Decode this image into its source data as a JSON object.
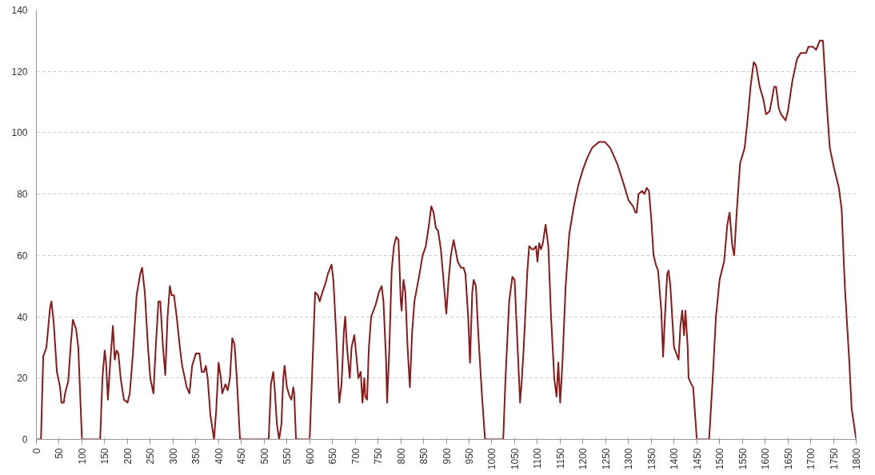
{
  "chart_data": {
    "type": "line",
    "xlim": [
      0,
      1800
    ],
    "ylim": [
      0,
      140
    ],
    "xticks": [
      0,
      50,
      100,
      150,
      200,
      250,
      300,
      350,
      400,
      450,
      500,
      550,
      600,
      650,
      700,
      750,
      800,
      850,
      900,
      950,
      1000,
      1050,
      1100,
      1150,
      1200,
      1250,
      1300,
      1350,
      1400,
      1450,
      1500,
      1550,
      1600,
      1650,
      1700,
      1750,
      1800
    ],
    "yticks": [
      0,
      20,
      40,
      60,
      80,
      100,
      120,
      140
    ],
    "grid": "y",
    "marker": "none",
    "line_style": "solid",
    "series": [
      {
        "color": "#8b1a1a",
        "x": [
          0,
          10,
          15,
          22,
          30,
          33,
          38,
          45,
          52,
          55,
          60,
          63,
          70,
          75,
          80,
          87,
          92,
          100,
          140,
          145,
          150,
          153,
          157,
          162,
          168,
          172,
          176,
          180,
          185,
          192,
          200,
          205,
          212,
          220,
          228,
          232,
          238,
          245,
          250,
          257,
          262,
          268,
          272,
          278,
          283,
          288,
          293,
          297,
          302,
          308,
          315,
          320,
          323,
          330,
          336,
          342,
          350,
          358,
          363,
          368,
          372,
          376,
          382,
          390,
          395,
          400,
          405,
          408,
          415,
          420,
          425,
          430,
          435,
          440,
          447,
          510,
          515,
          520,
          523,
          528,
          533,
          538,
          542,
          545,
          550,
          556,
          560,
          564,
          566,
          570,
          600,
          605,
          612,
          618,
          622,
          628,
          635,
          640,
          648,
          652,
          658,
          665,
          670,
          675,
          678,
          682,
          688,
          692,
          698,
          702,
          707,
          712,
          716,
          720,
          722,
          726,
          730,
          735,
          745,
          752,
          758,
          762,
          768,
          770,
          775,
          780,
          785,
          790,
          795,
          800,
          802,
          806,
          810,
          815,
          820,
          825,
          830,
          840,
          848,
          855,
          862,
          867,
          872,
          877,
          882,
          888,
          895,
          900,
          905,
          910,
          916,
          920,
          925,
          932,
          938,
          942,
          948,
          952,
          957,
          960,
          965,
          970,
          978,
          985,
          1025,
          1030,
          1038,
          1045,
          1050,
          1055,
          1062,
          1066,
          1070,
          1078,
          1082,
          1088,
          1092,
          1097,
          1100,
          1104,
          1108,
          1112,
          1118,
          1124,
          1130,
          1137,
          1142,
          1146,
          1150,
          1155,
          1162,
          1170,
          1180,
          1190,
          1200,
          1210,
          1220,
          1235,
          1248,
          1260,
          1275,
          1290,
          1300,
          1310,
          1315,
          1318,
          1322,
          1330,
          1335,
          1340,
          1345,
          1350,
          1355,
          1360,
          1365,
          1372,
          1376,
          1380,
          1385,
          1388,
          1392,
          1396,
          1400,
          1410,
          1414,
          1418,
          1422,
          1425,
          1430,
          1432,
          1438,
          1442,
          1450,
          1477,
          1485,
          1492,
          1500,
          1510,
          1517,
          1522,
          1528,
          1532,
          1538,
          1545,
          1555,
          1562,
          1568,
          1575,
          1580,
          1588,
          1596,
          1602,
          1610,
          1620,
          1624,
          1630,
          1635,
          1645,
          1650,
          1660,
          1670,
          1678,
          1690,
          1695,
          1705,
          1712,
          1720,
          1727,
          1735,
          1742,
          1752,
          1762,
          1768,
          1775,
          1785,
          1790,
          1800
        ],
        "values": [
          0,
          0,
          27,
          30,
          43,
          45,
          38,
          22,
          17,
          12,
          12,
          15,
          19,
          30,
          39,
          36,
          30,
          0,
          0,
          20,
          29,
          25,
          13,
          25,
          37,
          26,
          29,
          28,
          20,
          13,
          12,
          15,
          28,
          47,
          54,
          56,
          48,
          30,
          20,
          15,
          30,
          45,
          45,
          30,
          21,
          40,
          50,
          47,
          47,
          40,
          30,
          24,
          22,
          17,
          15,
          24,
          28,
          28,
          22,
          22,
          24,
          20,
          8,
          0,
          10,
          25,
          20,
          15,
          18,
          16,
          20,
          33,
          31,
          20,
          0,
          0,
          18,
          22,
          17,
          5,
          0,
          5,
          20,
          24,
          17,
          14,
          13,
          17,
          15,
          0,
          0,
          20,
          48,
          47,
          45,
          48,
          51,
          54,
          57,
          52,
          35,
          12,
          18,
          35,
          40,
          30,
          20,
          30,
          34,
          28,
          20,
          22,
          12,
          20,
          14,
          13,
          30,
          40,
          44,
          48,
          50,
          45,
          25,
          12,
          30,
          55,
          63,
          66,
          65,
          45,
          42,
          52,
          48,
          30,
          17,
          35,
          45,
          53,
          60,
          63,
          70,
          76,
          74,
          69,
          68,
          62,
          50,
          41,
          52,
          60,
          65,
          62,
          58,
          56,
          56,
          54,
          40,
          25,
          48,
          52,
          50,
          35,
          15,
          0,
          0,
          20,
          45,
          53,
          52,
          35,
          12,
          20,
          30,
          55,
          63,
          62,
          62,
          63,
          58,
          64,
          62,
          64,
          70,
          63,
          40,
          20,
          14,
          25,
          12,
          25,
          50,
          67,
          76,
          83,
          88,
          92,
          95,
          97,
          97,
          95,
          90,
          83,
          78,
          76,
          74,
          74,
          80,
          81,
          80,
          82,
          81,
          72,
          60,
          57,
          55,
          42,
          27,
          40,
          54,
          55,
          50,
          40,
          30,
          26,
          37,
          42,
          34,
          42,
          30,
          20,
          18,
          17,
          0,
          0,
          20,
          40,
          52,
          58,
          70,
          74,
          63,
          60,
          75,
          90,
          95,
          105,
          115,
          123,
          122,
          115,
          111,
          106,
          107,
          115,
          115,
          108,
          106,
          104,
          107,
          117,
          124,
          126,
          126,
          128,
          128,
          127,
          130,
          130,
          110,
          95,
          88,
          82,
          75,
          50,
          25,
          10,
          0
        ]
      }
    ]
  }
}
